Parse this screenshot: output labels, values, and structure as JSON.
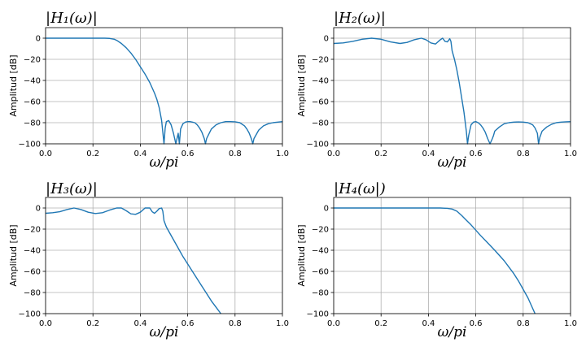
{
  "chart_data": [
    {
      "type": "line",
      "title": "|H₁(ω)|",
      "xlabel": "ω/pi",
      "ylabel": "Amplitud [dB]",
      "xlim": [
        0,
        1
      ],
      "ylim": [
        -100,
        10
      ],
      "xticks": [
        "0.0",
        "0.2",
        "0.4",
        "0.6",
        "0.8",
        "1.0"
      ],
      "yticks": [
        "0",
        "−20",
        "−40",
        "−60",
        "−80",
        "−100"
      ],
      "grid": true,
      "series": [
        {
          "color": "#1f77b4",
          "x": [
            0,
            0.05,
            0.1,
            0.15,
            0.2,
            0.25,
            0.27,
            0.29,
            0.3,
            0.32,
            0.34,
            0.36,
            0.38,
            0.4,
            0.42,
            0.44,
            0.46,
            0.47,
            0.48,
            0.49,
            0.5,
            0.505,
            0.51,
            0.52,
            0.53,
            0.54,
            0.55,
            0.56,
            0.565,
            0.57,
            0.58,
            0.59,
            0.6,
            0.61,
            0.62,
            0.63,
            0.64,
            0.65,
            0.66,
            0.67,
            0.675,
            0.68,
            0.7,
            0.72,
            0.74,
            0.76,
            0.78,
            0.8,
            0.82,
            0.84,
            0.85,
            0.86,
            0.87,
            0.875,
            0.88,
            0.9,
            0.92,
            0.94,
            0.96,
            0.98,
            1.0
          ],
          "y": [
            0,
            0,
            0,
            0,
            0,
            0,
            -0.2,
            -1,
            -2,
            -5,
            -9,
            -14,
            -20,
            -27,
            -34,
            -42,
            -52,
            -58,
            -66,
            -78,
            -100,
            -85,
            -79,
            -78,
            -82,
            -90,
            -100,
            -90,
            -100,
            -86,
            -81,
            -79.5,
            -79,
            -79,
            -79.5,
            -80,
            -82,
            -85,
            -89,
            -95,
            -100,
            -95,
            -86,
            -82,
            -80,
            -79,
            -79,
            -79.2,
            -80,
            -83,
            -86,
            -90,
            -96,
            -100,
            -95,
            -87,
            -83,
            -81,
            -80,
            -79.5,
            -79
          ]
        }
      ]
    },
    {
      "type": "line",
      "title": "|H₂(ω)|",
      "xlabel": "ω/pi",
      "ylabel": "Amplitud [dB]",
      "xlim": [
        0,
        1
      ],
      "ylim": [
        -100,
        10
      ],
      "xticks": [
        "0.0",
        "0.2",
        "0.4",
        "0.6",
        "0.8",
        "1.0"
      ],
      "yticks": [
        "0",
        "−20",
        "−40",
        "−60",
        "−80",
        "−100"
      ],
      "grid": true,
      "series": [
        {
          "color": "#1f77b4",
          "x": [
            0,
            0.04,
            0.08,
            0.12,
            0.16,
            0.2,
            0.24,
            0.28,
            0.31,
            0.34,
            0.37,
            0.39,
            0.41,
            0.43,
            0.45,
            0.46,
            0.47,
            0.48,
            0.49,
            0.495,
            0.5,
            0.51,
            0.52,
            0.53,
            0.54,
            0.55,
            0.56,
            0.565,
            0.57,
            0.58,
            0.59,
            0.6,
            0.61,
            0.62,
            0.63,
            0.64,
            0.65,
            0.66,
            0.67,
            0.675,
            0.68,
            0.7,
            0.72,
            0.74,
            0.76,
            0.78,
            0.8,
            0.82,
            0.84,
            0.85,
            0.86,
            0.865,
            0.87,
            0.88,
            0.9,
            0.92,
            0.94,
            0.96,
            0.98,
            1.0
          ],
          "y": [
            -5,
            -4.5,
            -3,
            -1,
            0,
            -1,
            -3.5,
            -5,
            -4,
            -1.5,
            0,
            -1.5,
            -4.5,
            -5.5,
            -1.5,
            0,
            -3,
            -3.5,
            -0.5,
            -3,
            -12,
            -20,
            -30,
            -42,
            -56,
            -70,
            -88,
            -100,
            -92,
            -82,
            -79.5,
            -79,
            -80,
            -82,
            -85,
            -89,
            -95,
            -100,
            -95,
            -92,
            -88,
            -84,
            -81,
            -80,
            -79.5,
            -79.3,
            -79.5,
            -80,
            -82,
            -85,
            -90,
            -100,
            -94,
            -88,
            -84,
            -81.5,
            -80,
            -79.5,
            -79.2,
            -79
          ]
        }
      ]
    },
    {
      "type": "line",
      "title": "|H₃(ω)|",
      "xlabel": "ω/pi",
      "ylabel": "Amplitud [dB]",
      "xlim": [
        0,
        1
      ],
      "ylim": [
        -100,
        10
      ],
      "xticks": [
        "0.0",
        "0.2",
        "0.4",
        "0.6",
        "0.8",
        "1.0"
      ],
      "yticks": [
        "0",
        "−20",
        "−40",
        "−60",
        "−80",
        "−100"
      ],
      "grid": true,
      "series": [
        {
          "color": "#1f77b4",
          "x": [
            0,
            0.03,
            0.06,
            0.09,
            0.12,
            0.15,
            0.18,
            0.21,
            0.24,
            0.27,
            0.3,
            0.32,
            0.34,
            0.36,
            0.38,
            0.4,
            0.42,
            0.44,
            0.45,
            0.46,
            0.47,
            0.48,
            0.49,
            0.495,
            0.5,
            0.51,
            0.52,
            0.54,
            0.56,
            0.58,
            0.6,
            0.62,
            0.64,
            0.66,
            0.68,
            0.7,
            0.72,
            0.74
          ],
          "y": [
            -5,
            -4.5,
            -3.5,
            -1.5,
            0,
            -1.5,
            -4,
            -5.2,
            -4.5,
            -2,
            0,
            0,
            -2.5,
            -5.5,
            -6,
            -4,
            0,
            0,
            -3.5,
            -5,
            -3,
            -0.5,
            0,
            -3,
            -12,
            -18,
            -22,
            -30,
            -38,
            -46,
            -53,
            -60,
            -67,
            -74,
            -81,
            -88,
            -94,
            -100
          ]
        }
      ]
    },
    {
      "type": "line",
      "title": "|H₄(ω|)",
      "xlabel": "ω/pi",
      "ylabel": "Amplitud [dB]",
      "xlim": [
        0,
        1
      ],
      "ylim": [
        -100,
        10
      ],
      "xticks": [
        "0.0",
        "0.2",
        "0.4",
        "0.6",
        "0.8",
        "1.0"
      ],
      "yticks": [
        "0",
        "−20",
        "−40",
        "−60",
        "−80",
        "−100"
      ],
      "grid": true,
      "series": [
        {
          "color": "#1f77b4",
          "x": [
            0,
            0.1,
            0.2,
            0.3,
            0.4,
            0.45,
            0.48,
            0.5,
            0.52,
            0.54,
            0.56,
            0.58,
            0.6,
            0.62,
            0.65,
            0.68,
            0.7,
            0.72,
            0.74,
            0.76,
            0.78,
            0.8,
            0.82,
            0.84,
            0.85
          ],
          "y": [
            0,
            0,
            0,
            0,
            0,
            0,
            -0.3,
            -1,
            -3,
            -7,
            -11.5,
            -16,
            -21,
            -26,
            -33,
            -40,
            -45,
            -50,
            -56,
            -62,
            -69,
            -77,
            -85,
            -95,
            -100
          ]
        }
      ]
    }
  ]
}
